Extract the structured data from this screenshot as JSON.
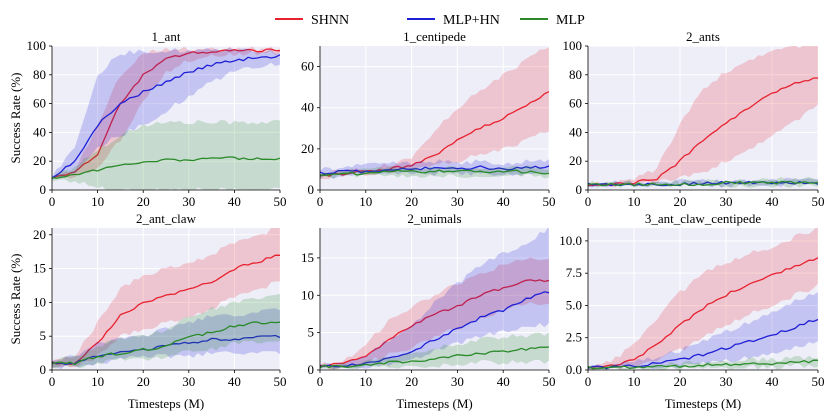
{
  "legend": {
    "entries": [
      {
        "name": "SHNN",
        "color": "#e8212f"
      },
      {
        "name": "MLP+HN",
        "color": "#1f1fd6"
      },
      {
        "name": "MLP",
        "color": "#2a8a2a"
      }
    ]
  },
  "chart_data": [
    {
      "type": "line",
      "title": "1_ant",
      "xlabel": "",
      "ylabel": "Success Rate (%)",
      "xlim": [
        0,
        50
      ],
      "ylim": [
        0,
        100
      ],
      "xticks": [
        0,
        10,
        20,
        30,
        40,
        50
      ],
      "yticks": [
        0,
        20,
        40,
        60,
        80,
        100
      ],
      "ytick_labels": [
        "0",
        "20",
        "40",
        "60",
        "80",
        "100"
      ],
      "x": [
        0,
        5,
        10,
        15,
        20,
        25,
        30,
        35,
        40,
        45,
        50
      ],
      "series": [
        {
          "name": "SHNN",
          "color": "#e8212f",
          "values": [
            8,
            12,
            25,
            60,
            80,
            91,
            95,
            96,
            97,
            97,
            97
          ],
          "lower": [
            8,
            10,
            15,
            35,
            62,
            82,
            90,
            93,
            94,
            95,
            95
          ],
          "upper": [
            9,
            14,
            45,
            80,
            95,
            98,
            98,
            98,
            98,
            98,
            98
          ]
        },
        {
          "name": "MLP+HN",
          "color": "#1f1fd6",
          "values": [
            9,
            20,
            45,
            60,
            68,
            75,
            82,
            87,
            90,
            92,
            93
          ],
          "lower": [
            8,
            12,
            30,
            38,
            45,
            55,
            65,
            75,
            82,
            86,
            88
          ],
          "upper": [
            10,
            30,
            80,
            95,
            96,
            97,
            97,
            97,
            97,
            97,
            96
          ]
        },
        {
          "name": "MLP",
          "color": "#2a8a2a",
          "values": [
            8,
            11,
            14,
            17,
            20,
            21,
            21,
            22,
            22,
            22,
            22
          ],
          "lower": [
            7,
            6,
            2,
            0,
            0,
            0,
            0,
            0,
            0,
            0,
            0
          ],
          "upper": [
            9,
            16,
            28,
            38,
            45,
            47,
            47,
            47,
            47,
            47,
            47
          ]
        }
      ]
    },
    {
      "type": "line",
      "title": "1_centipede",
      "xlabel": "",
      "ylabel": "",
      "xlim": [
        0,
        50
      ],
      "ylim": [
        0,
        70
      ],
      "xticks": [
        0,
        10,
        20,
        30,
        40,
        50
      ],
      "yticks": [
        0,
        20,
        40,
        60
      ],
      "ytick_labels": [
        "0",
        "20",
        "40",
        "60"
      ],
      "x": [
        0,
        5,
        10,
        15,
        20,
        25,
        30,
        35,
        40,
        45,
        50
      ],
      "series": [
        {
          "name": "SHNN",
          "color": "#e8212f",
          "values": [
            7,
            8,
            9,
            10,
            12,
            17,
            24,
            30,
            35,
            41,
            48
          ],
          "lower": [
            6,
            7,
            8,
            9,
            10,
            12,
            14,
            17,
            20,
            24,
            29
          ],
          "upper": [
            8,
            9,
            10,
            12,
            16,
            28,
            40,
            48,
            56,
            63,
            70
          ]
        },
        {
          "name": "MLP+HN",
          "color": "#1f1fd6",
          "values": [
            8,
            9,
            9,
            10,
            10,
            11,
            10,
            11,
            10,
            11,
            11
          ],
          "lower": [
            6,
            7,
            7,
            8,
            8,
            8,
            8,
            8,
            8,
            8,
            8
          ],
          "upper": [
            10,
            11,
            12,
            13,
            13,
            14,
            13,
            14,
            13,
            14,
            14
          ]
        },
        {
          "name": "MLP",
          "color": "#2a8a2a",
          "values": [
            7,
            8,
            8,
            9,
            9,
            9,
            9,
            9,
            9,
            9,
            8
          ],
          "lower": [
            6,
            7,
            7,
            7,
            7,
            7,
            7,
            7,
            7,
            7,
            6
          ],
          "upper": [
            8,
            9,
            10,
            11,
            11,
            11,
            11,
            11,
            11,
            11,
            10
          ]
        }
      ]
    },
    {
      "type": "line",
      "title": "2_ants",
      "xlabel": "",
      "ylabel": "",
      "xlim": [
        0,
        50
      ],
      "ylim": [
        0,
        100
      ],
      "xticks": [
        0,
        10,
        20,
        30,
        40,
        50
      ],
      "yticks": [
        0,
        20,
        40,
        60,
        80,
        100
      ],
      "ytick_labels": [
        "0",
        "20",
        "40",
        "60",
        "80",
        "100"
      ],
      "x": [
        0,
        5,
        10,
        15,
        20,
        25,
        30,
        35,
        40,
        45,
        50
      ],
      "series": [
        {
          "name": "SHNN",
          "color": "#e8212f",
          "values": [
            4,
            4,
            5,
            8,
            20,
            35,
            47,
            57,
            67,
            74,
            78
          ],
          "lower": [
            3,
            3,
            4,
            5,
            8,
            12,
            20,
            28,
            38,
            48,
            58
          ],
          "upper": [
            5,
            5,
            7,
            15,
            45,
            70,
            82,
            90,
            97,
            100,
            100
          ]
        },
        {
          "name": "MLP+HN",
          "color": "#1f1fd6",
          "values": [
            4,
            4,
            4,
            4,
            4,
            5,
            5,
            5,
            5,
            5,
            5
          ],
          "lower": [
            3,
            3,
            3,
            3,
            3,
            3,
            3,
            3,
            3,
            4,
            4
          ],
          "upper": [
            5,
            5,
            5,
            5,
            6,
            6,
            6,
            6,
            7,
            7,
            7
          ]
        },
        {
          "name": "MLP",
          "color": "#2a8a2a",
          "values": [
            4,
            4,
            4,
            4,
            4,
            4,
            5,
            5,
            5,
            5,
            5
          ],
          "lower": [
            3,
            3,
            3,
            3,
            3,
            3,
            3,
            3,
            3,
            3,
            3
          ],
          "upper": [
            5,
            5,
            5,
            5,
            6,
            6,
            7,
            7,
            8,
            8,
            8
          ]
        }
      ]
    },
    {
      "type": "line",
      "title": "2_ant_claw",
      "xlabel": "Timesteps (M)",
      "ylabel": "Success Rate (%)",
      "xlim": [
        0,
        50
      ],
      "ylim": [
        0,
        21
      ],
      "xticks": [
        0,
        10,
        20,
        30,
        40,
        50
      ],
      "yticks": [
        0,
        5,
        10,
        15,
        20
      ],
      "ytick_labels": [
        "0",
        "5",
        "10",
        "15",
        "20"
      ],
      "x": [
        0,
        5,
        10,
        15,
        20,
        25,
        30,
        35,
        40,
        45,
        50
      ],
      "series": [
        {
          "name": "SHNN",
          "color": "#e8212f",
          "values": [
            1,
            1,
            4,
            8,
            10,
            11,
            12,
            13,
            15,
            16,
            17
          ],
          "lower": [
            0.5,
            0.5,
            2,
            5,
            6,
            7,
            8,
            9,
            11,
            12,
            13
          ],
          "upper": [
            1.5,
            2,
            7,
            12,
            14,
            15,
            16,
            17,
            19,
            20,
            21
          ]
        },
        {
          "name": "MLP+HN",
          "color": "#1f1fd6",
          "values": [
            1,
            1,
            2,
            2.5,
            3,
            3.5,
            4,
            4.5,
            4.5,
            5,
            5
          ],
          "lower": [
            0.5,
            0.5,
            1,
            1.5,
            2,
            2,
            2,
            2.5,
            2.5,
            2.5,
            2.5
          ],
          "upper": [
            1.5,
            2,
            4,
            4.5,
            5,
            6,
            7,
            8,
            8,
            8.5,
            9
          ]
        },
        {
          "name": "MLP",
          "color": "#2a8a2a",
          "values": [
            1,
            1,
            2,
            2.5,
            3,
            3.5,
            5,
            5.5,
            6.5,
            7,
            7
          ],
          "lower": [
            0.5,
            0.5,
            1,
            1.5,
            1.5,
            2,
            3,
            3,
            4,
            4,
            4
          ],
          "upper": [
            1.5,
            2,
            3.5,
            4.5,
            5,
            6,
            8,
            9,
            10,
            10.5,
            11
          ]
        }
      ]
    },
    {
      "type": "line",
      "title": "2_unimals",
      "xlabel": "Timesteps (M)",
      "ylabel": "",
      "xlim": [
        0,
        50
      ],
      "ylim": [
        0,
        19
      ],
      "xticks": [
        0,
        10,
        20,
        30,
        40,
        50
      ],
      "yticks": [
        0,
        5,
        10,
        15
      ],
      "ytick_labels": [
        "0",
        "5",
        "10",
        "15"
      ],
      "x": [
        0,
        5,
        10,
        15,
        20,
        25,
        30,
        35,
        40,
        45,
        50
      ],
      "series": [
        {
          "name": "SHNN",
          "color": "#e8212f",
          "values": [
            0.5,
            0.8,
            2,
            4,
            6,
            7.5,
            8.5,
            10,
            11,
            12,
            12
          ],
          "lower": [
            0.3,
            0.5,
            1,
            2,
            3,
            4.5,
            5.5,
            7,
            8,
            9,
            9
          ],
          "upper": [
            0.8,
            1.2,
            3.5,
            6.5,
            8.5,
            10,
            11.5,
            13,
            14,
            15,
            15
          ]
        },
        {
          "name": "MLP+HN",
          "color": "#1f1fd6",
          "values": [
            0.5,
            0.5,
            0.8,
            1.5,
            2.5,
            4,
            5.5,
            7,
            8,
            9.5,
            10.5
          ],
          "lower": [
            0.3,
            0.3,
            0.4,
            0.8,
            1.5,
            2.5,
            3.5,
            4.5,
            5,
            6,
            6
          ],
          "upper": [
            0.8,
            0.8,
            2,
            4,
            6,
            9,
            11.5,
            14,
            15.5,
            17,
            19
          ]
        },
        {
          "name": "MLP",
          "color": "#2a8a2a",
          "values": [
            0.5,
            0.5,
            0.6,
            1,
            1.2,
            1.5,
            2,
            2.2,
            2.5,
            2.8,
            3
          ],
          "lower": [
            0.3,
            0.3,
            0.3,
            0.5,
            0.5,
            0.6,
            0.8,
            1,
            1,
            1,
            1.2
          ],
          "upper": [
            0.8,
            0.8,
            1,
            1.8,
            2.2,
            3,
            3.5,
            4,
            4.5,
            4.5,
            5
          ]
        }
      ]
    },
    {
      "type": "line",
      "title": "3_ant_claw_centipede",
      "xlabel": "Timesteps (M)",
      "ylabel": "",
      "xlim": [
        0,
        50
      ],
      "ylim": [
        0,
        11
      ],
      "xticks": [
        0,
        10,
        20,
        30,
        40,
        50
      ],
      "yticks": [
        0,
        2.5,
        5,
        7.5,
        10
      ],
      "ytick_labels": [
        "0.0",
        "2.5",
        "5.0",
        "7.5",
        "10.0"
      ],
      "x": [
        0,
        5,
        10,
        15,
        20,
        25,
        30,
        35,
        40,
        45,
        50
      ],
      "series": [
        {
          "name": "SHNN",
          "color": "#e8212f",
          "values": [
            0.2,
            0.3,
            0.8,
            2,
            3.5,
            4.8,
            5.8,
            6.7,
            7.3,
            8,
            8.7
          ],
          "lower": [
            0.1,
            0.1,
            0.3,
            0.8,
            1.5,
            2.5,
            3.5,
            4.3,
            5,
            5.8,
            6.5
          ],
          "upper": [
            0.3,
            0.6,
            2,
            4,
            6,
            7.5,
            8.3,
            9,
            9.5,
            10.3,
            11
          ]
        },
        {
          "name": "MLP+HN",
          "color": "#1f1fd6",
          "values": [
            0.2,
            0.2,
            0.3,
            0.5,
            0.8,
            1.2,
            1.7,
            2.2,
            2.7,
            3.3,
            4
          ],
          "lower": [
            0.1,
            0.1,
            0.1,
            0.2,
            0.3,
            0.5,
            0.7,
            1,
            1.3,
            1.7,
            2.2
          ],
          "upper": [
            0.3,
            0.3,
            0.6,
            1,
            1.5,
            2.2,
            3,
            3.7,
            4.5,
            5.3,
            6
          ]
        },
        {
          "name": "MLP",
          "color": "#2a8a2a",
          "values": [
            0.2,
            0.2,
            0.2,
            0.3,
            0.3,
            0.4,
            0.4,
            0.5,
            0.5,
            0.6,
            0.7
          ],
          "lower": [
            0.1,
            0.1,
            0.1,
            0.1,
            0.1,
            0.2,
            0.2,
            0.2,
            0.2,
            0.3,
            0.3
          ],
          "upper": [
            0.3,
            0.3,
            0.3,
            0.4,
            0.5,
            0.6,
            0.7,
            0.8,
            0.8,
            0.9,
            1
          ]
        }
      ]
    }
  ]
}
